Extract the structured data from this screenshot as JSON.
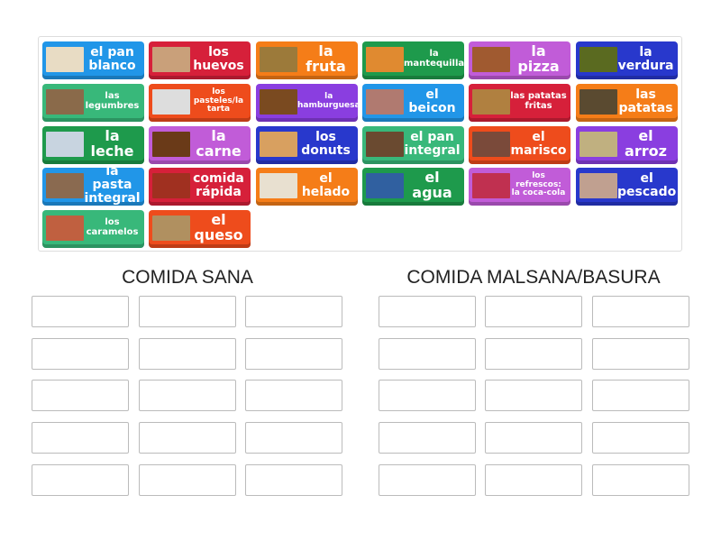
{
  "colors": {
    "blue": "#2196e8",
    "red": "#d6203a",
    "orange": "#f57d18",
    "green": "#1e9a4c",
    "pink": "#c15cd8",
    "darkblue": "#2838cc",
    "teal": "#38b87a",
    "redorange": "#ee4c1c",
    "violet": "#8a3ee0"
  },
  "tiles": [
    {
      "label": "el pan blanco",
      "color": "blue",
      "icon": "bread-photo"
    },
    {
      "label": "los huevos",
      "color": "red",
      "icon": "eggs-photo"
    },
    {
      "label": "la fruta",
      "color": "orange",
      "icon": "fruit-photo"
    },
    {
      "label": "la mantequilla",
      "color": "green",
      "icon": "butter-photo"
    },
    {
      "label": "la pizza",
      "color": "pink",
      "icon": "pizza-photo"
    },
    {
      "label": "la verdura",
      "color": "darkblue",
      "icon": "vegetables-photo"
    },
    {
      "label": "las legumbres",
      "color": "teal",
      "icon": "legumes-photo"
    },
    {
      "label": "los pasteles/la tarta",
      "color": "redorange",
      "icon": "cake-photo"
    },
    {
      "label": "la hamburguesa",
      "color": "violet",
      "icon": "burger-photo"
    },
    {
      "label": "el beicon",
      "color": "blue",
      "icon": "bacon-photo"
    },
    {
      "label": "las patatas fritas",
      "color": "red",
      "icon": "fries-photo"
    },
    {
      "label": "las patatas",
      "color": "orange",
      "icon": "potatoes-photo"
    },
    {
      "label": "la leche",
      "color": "green",
      "icon": "milk-photo"
    },
    {
      "label": "la carne",
      "color": "pink",
      "icon": "meat-photo"
    },
    {
      "label": "los donuts",
      "color": "darkblue",
      "icon": "donuts-photo"
    },
    {
      "label": "el pan integral",
      "color": "teal",
      "icon": "wholegrain-bread-photo"
    },
    {
      "label": "el marisco",
      "color": "redorange",
      "icon": "seafood-photo"
    },
    {
      "label": "el arroz",
      "color": "violet",
      "icon": "rice-photo"
    },
    {
      "label": "la pasta integral",
      "color": "blue",
      "icon": "pasta-photo"
    },
    {
      "label": "comida rápida",
      "color": "red",
      "icon": "fastfood-photo"
    },
    {
      "label": "el helado",
      "color": "orange",
      "icon": "icecream-photo"
    },
    {
      "label": "el agua",
      "color": "green",
      "icon": "water-photo"
    },
    {
      "label": "los refrescos: la coca-cola",
      "color": "pink",
      "icon": "soda-photo"
    },
    {
      "label": "el pescado",
      "color": "darkblue",
      "icon": "fish-photo"
    },
    {
      "label": "los caramelos",
      "color": "teal",
      "icon": "candy-photo"
    },
    {
      "label": "el queso",
      "color": "redorange",
      "icon": "cheese-photo"
    }
  ],
  "groups": [
    {
      "title": "COMIDA SANA"
    },
    {
      "title": "COMIDA MALSANA/BASURA"
    }
  ]
}
